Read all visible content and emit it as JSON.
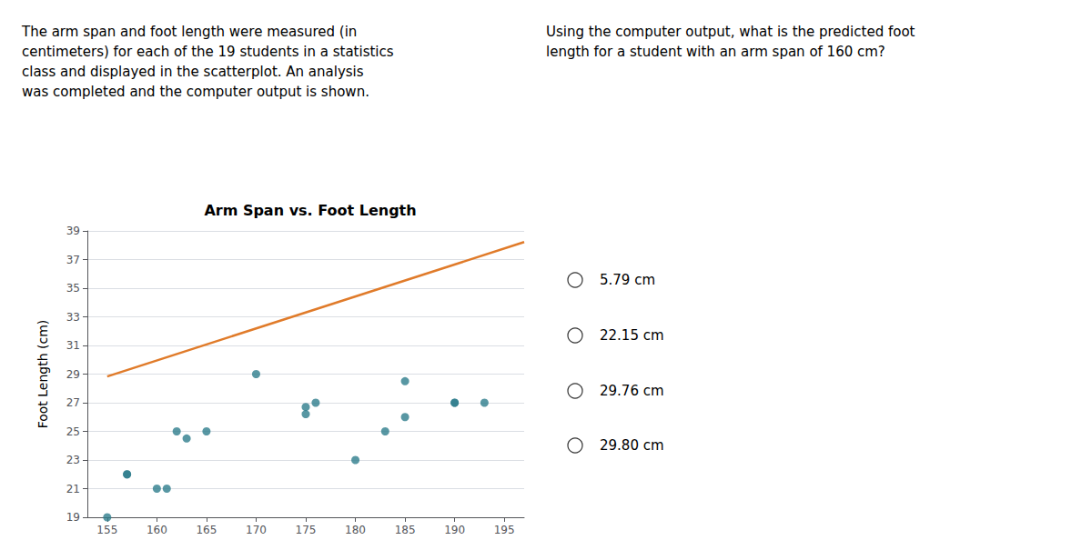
{
  "chart_data": {
    "type": "scatter",
    "title": "Arm Span vs. Foot Length",
    "ylabel": "Foot Length (cm)",
    "passage": [
      "The arm span and foot length were measured (in",
      "centimeters) for each of the 19 students in a statistics",
      "class and displayed in the scatterplot. An analysis",
      "was completed and the computer output is shown."
    ],
    "question": "Using the computer output, what is the predicted foot\nlength for a student with an arm span of 160 cm?",
    "choices": [
      "5.79 cm",
      "22.15 cm",
      "29.76 cm",
      "29.80 cm"
    ],
    "series": [
      {
        "type": "scatter",
        "color": "#2e7d8c",
        "x": [
          155,
          157,
          157,
          160,
          161,
          162,
          163,
          165,
          170,
          175,
          175,
          176,
          180,
          183,
          185,
          185,
          190,
          190,
          193
        ],
        "values": [
          19,
          22,
          22,
          21,
          21,
          25,
          24.5,
          25,
          29,
          26.2,
          26.7,
          27,
          23,
          25,
          28.5,
          26,
          27,
          27,
          27
        ]
      },
      {
        "type": "line",
        "color": "#e07b2a",
        "x": [
          155,
          197
        ],
        "values": [
          28.837,
          38.2198
        ]
      }
    ],
    "xlim": [
      153,
      197
    ],
    "ylim": [
      19,
      39
    ],
    "xticks": [
      155,
      160,
      165,
      170,
      175,
      180,
      185,
      190,
      195
    ],
    "yticks": [
      19,
      21,
      23,
      25,
      27,
      29,
      31,
      33,
      35,
      37,
      39
    ],
    "grid": true
  }
}
